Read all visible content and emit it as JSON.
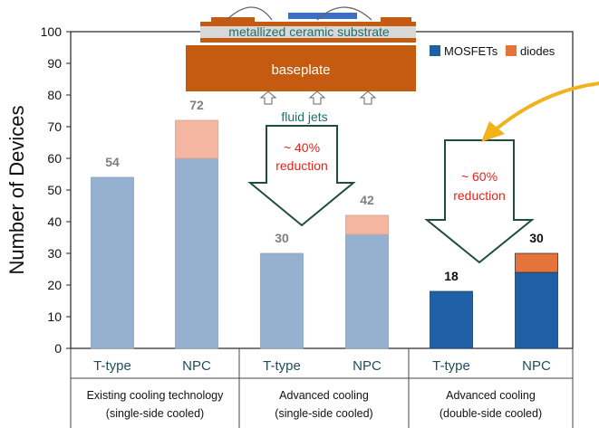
{
  "chart_data": {
    "type": "bar",
    "ylabel": "Number of Devices",
    "ylim": [
      0,
      100
    ],
    "yticks": [
      0,
      10,
      20,
      30,
      40,
      50,
      60,
      70,
      80,
      90,
      100
    ],
    "categories": [
      "T-type",
      "NPC",
      "T-type",
      "NPC",
      "T-type",
      "NPC"
    ],
    "groups": [
      {
        "line1": "Existing cooling technology",
        "line2": "(single-side cooled)"
      },
      {
        "line1": "Advanced cooling",
        "line2": "(single-side cooled)"
      },
      {
        "line1": "Advanced cooling",
        "line2": "(double-side cooled)"
      }
    ],
    "series": [
      {
        "name": "MOSFETs",
        "values": [
          54,
          60,
          30,
          36,
          18,
          24
        ]
      },
      {
        "name": "diodes",
        "values": [
          0,
          12,
          0,
          6,
          0,
          6
        ]
      }
    ],
    "totals": [
      54,
      72,
      30,
      42,
      18,
      30
    ],
    "legend_position": "top-right",
    "grid": false,
    "colors": {
      "mosfet_light": "#96b1d0",
      "diode_light": "#f4b6a0",
      "mosfet_dark": "#1f5fa6",
      "diode_dark": "#e5743a",
      "label_grey": "#7f7f7f",
      "label_dark": "#111111",
      "arrow_stroke": "#1f4e3d",
      "reduction_text": "#e0241b",
      "baseplate": "#c55a11",
      "substrate": "#d8d8d8",
      "substrate_text": "#1f6f6a",
      "callout_arrow": "#f2b21b"
    },
    "annotations": {
      "substrate_label": "metallized ceramic substrate",
      "baseplate_label": "baseplate",
      "fluid_jets_label": "fluid jets",
      "arrow1_line1": "~ 40%",
      "arrow1_line2": "reduction",
      "arrow2_line1": "~ 60%",
      "arrow2_line2": "reduction"
    }
  }
}
